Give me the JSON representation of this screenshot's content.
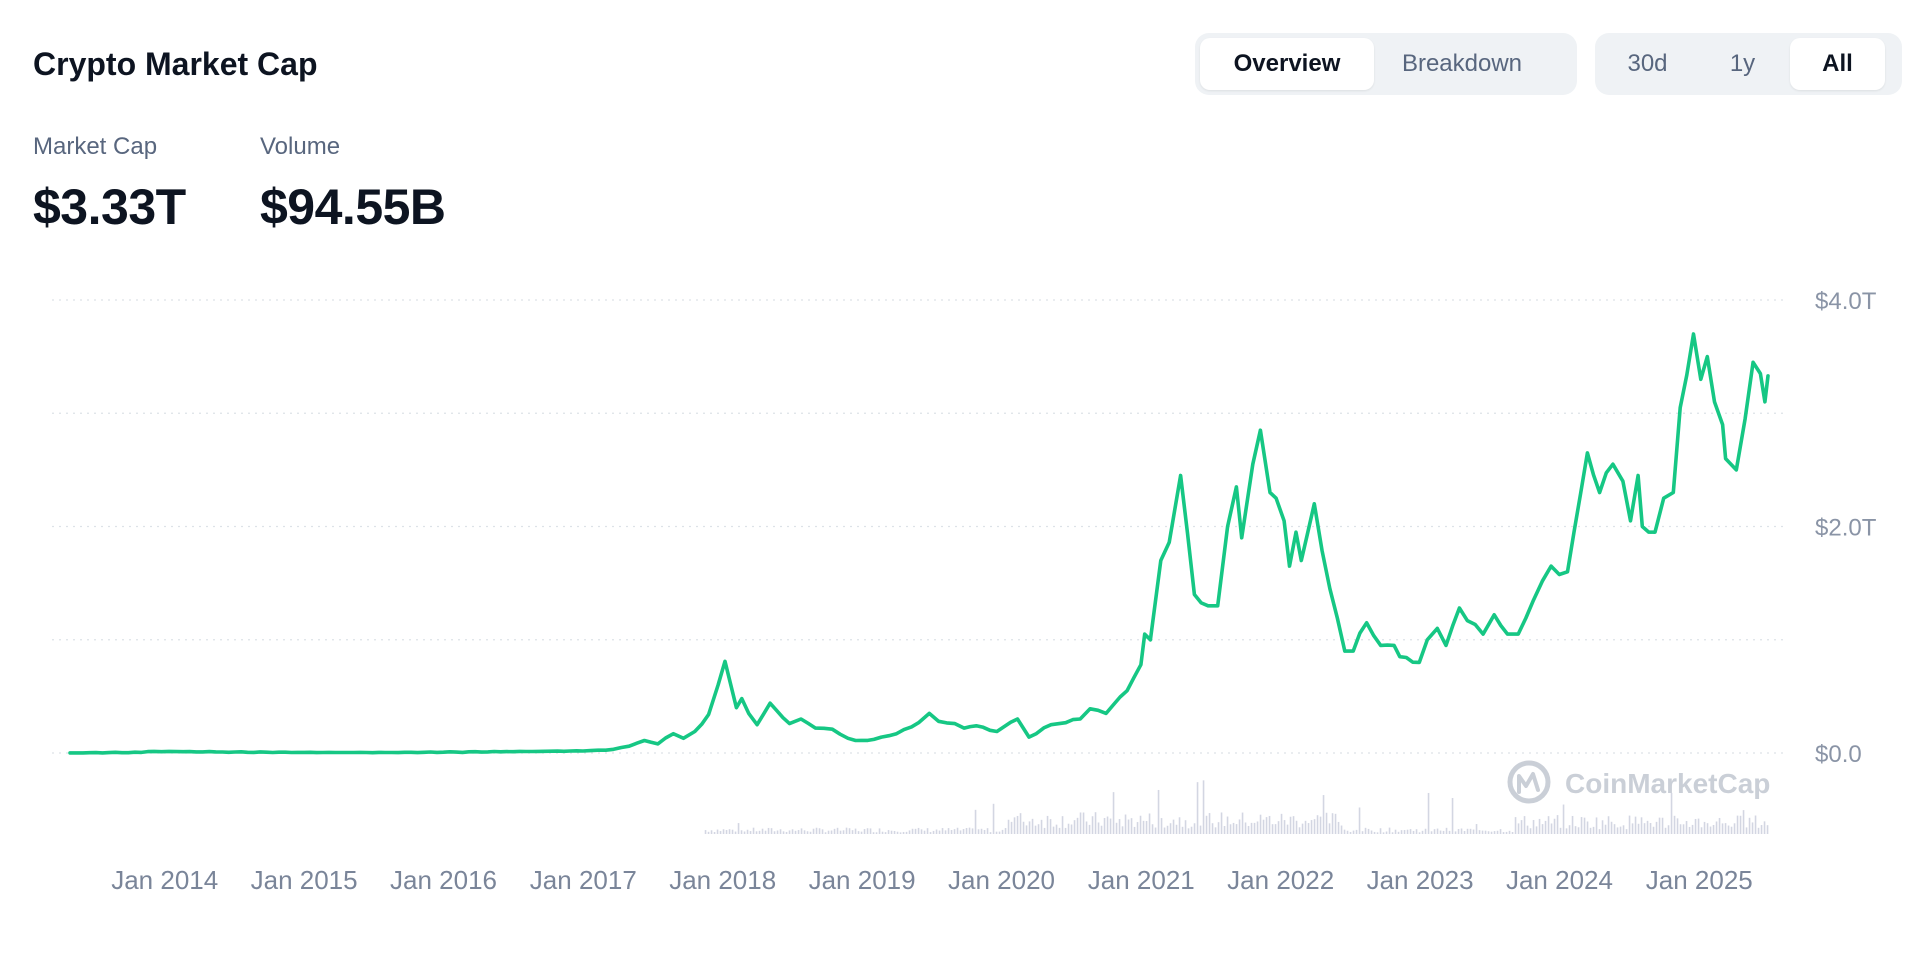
{
  "header": {
    "title": "Crypto Market Cap",
    "view_tabs": [
      {
        "label": "Overview",
        "active": true
      },
      {
        "label": "Breakdown",
        "active": false
      }
    ],
    "range_tabs": [
      {
        "label": "30d",
        "active": false
      },
      {
        "label": "1y",
        "active": false
      },
      {
        "label": "All",
        "active": true
      }
    ]
  },
  "stats": {
    "market_cap_label": "Market Cap",
    "market_cap_value": "$3.33T",
    "volume_label": "Volume",
    "volume_value": "$94.55B"
  },
  "watermark": {
    "text": "CoinMarketCap",
    "icon": "coinmarketcap-logo-icon"
  },
  "colors": {
    "line": "#16c784",
    "grid": "#dde2e8",
    "volume_bars": "#c8ccdb",
    "axis_text": "#7a8599"
  },
  "chart_data": {
    "type": "line",
    "title": "",
    "xlabel": "",
    "ylabel": "",
    "y_unit": "USD trillions",
    "ylim": [
      0,
      4
    ],
    "y_ticks": [
      {
        "value": 0,
        "label": "$0.0"
      },
      {
        "value": 2,
        "label": "$2.0T"
      },
      {
        "value": 4,
        "label": "$4.0T"
      }
    ],
    "x_range": [
      "2013-04-28",
      "2025-06-30"
    ],
    "x_ticks": [
      {
        "date": "2014-01-01",
        "label": "Jan 2014"
      },
      {
        "date": "2015-01-01",
        "label": "Jan 2015"
      },
      {
        "date": "2016-01-01",
        "label": "Jan 2016"
      },
      {
        "date": "2017-01-01",
        "label": "Jan 2017"
      },
      {
        "date": "2018-01-01",
        "label": "Jan 2018"
      },
      {
        "date": "2019-01-01",
        "label": "Jan 2019"
      },
      {
        "date": "2020-01-01",
        "label": "Jan 2020"
      },
      {
        "date": "2021-01-01",
        "label": "Jan 2021"
      },
      {
        "date": "2022-01-01",
        "label": "Jan 2022"
      },
      {
        "date": "2023-01-01",
        "label": "Jan 2023"
      },
      {
        "date": "2024-01-01",
        "label": "Jan 2024"
      },
      {
        "date": "2025-01-01",
        "label": "Jan 2025"
      }
    ],
    "grid": true,
    "series": [
      {
        "points": [
          [
            "2013-04-28",
            0.001
          ],
          [
            "2013-11-01",
            0.005
          ],
          [
            "2013-12-04",
            0.014
          ],
          [
            "2014-02-01",
            0.012
          ],
          [
            "2014-06-01",
            0.009
          ],
          [
            "2015-01-01",
            0.005
          ],
          [
            "2015-08-01",
            0.004
          ],
          [
            "2016-01-01",
            0.007
          ],
          [
            "2016-06-15",
            0.012
          ],
          [
            "2016-12-31",
            0.018
          ],
          [
            "2017-03-01",
            0.025
          ],
          [
            "2017-05-01",
            0.06
          ],
          [
            "2017-06-10",
            0.11
          ],
          [
            "2017-07-15",
            0.08
          ],
          [
            "2017-08-25",
            0.17
          ],
          [
            "2017-09-20",
            0.13
          ],
          [
            "2017-10-20",
            0.19
          ],
          [
            "2017-11-25",
            0.34
          ],
          [
            "2017-12-20",
            0.6
          ],
          [
            "2018-01-07",
            0.81
          ],
          [
            "2018-02-06",
            0.4
          ],
          [
            "2018-02-20",
            0.48
          ],
          [
            "2018-03-10",
            0.35
          ],
          [
            "2018-04-01",
            0.25
          ],
          [
            "2018-05-05",
            0.44
          ],
          [
            "2018-06-25",
            0.26
          ],
          [
            "2018-07-25",
            0.3
          ],
          [
            "2018-09-01",
            0.22
          ],
          [
            "2018-10-15",
            0.21
          ],
          [
            "2018-11-25",
            0.13
          ],
          [
            "2018-12-15",
            0.11
          ],
          [
            "2019-02-01",
            0.12
          ],
          [
            "2019-04-01",
            0.17
          ],
          [
            "2019-05-30",
            0.27
          ],
          [
            "2019-06-26",
            0.35
          ],
          [
            "2019-07-20",
            0.28
          ],
          [
            "2019-09-01",
            0.26
          ],
          [
            "2019-09-25",
            0.22
          ],
          [
            "2019-10-27",
            0.24
          ],
          [
            "2019-12-20",
            0.19
          ],
          [
            "2020-02-12",
            0.3
          ],
          [
            "2020-03-13",
            0.14
          ],
          [
            "2020-05-10",
            0.25
          ],
          [
            "2020-07-25",
            0.3
          ],
          [
            "2020-08-20",
            0.39
          ],
          [
            "2020-10-01",
            0.35
          ],
          [
            "2020-11-25",
            0.55
          ],
          [
            "2020-12-31",
            0.78
          ],
          [
            "2021-01-10",
            1.05
          ],
          [
            "2021-01-25",
            1.0
          ],
          [
            "2021-02-21",
            1.7
          ],
          [
            "2021-03-15",
            1.86
          ],
          [
            "2021-04-14",
            2.45
          ],
          [
            "2021-05-20",
            1.4
          ],
          [
            "2021-06-25",
            1.3
          ],
          [
            "2021-07-20",
            1.3
          ],
          [
            "2021-08-15",
            2.0
          ],
          [
            "2021-09-07",
            2.35
          ],
          [
            "2021-09-21",
            1.9
          ],
          [
            "2021-10-20",
            2.55
          ],
          [
            "2021-11-09",
            2.85
          ],
          [
            "2021-12-04",
            2.3
          ],
          [
            "2021-12-20",
            2.25
          ],
          [
            "2022-01-10",
            2.05
          ],
          [
            "2022-01-24",
            1.65
          ],
          [
            "2022-02-10",
            1.95
          ],
          [
            "2022-02-24",
            1.7
          ],
          [
            "2022-03-30",
            2.2
          ],
          [
            "2022-05-10",
            1.45
          ],
          [
            "2022-06-18",
            0.9
          ],
          [
            "2022-07-10",
            0.9
          ],
          [
            "2022-08-14",
            1.15
          ],
          [
            "2022-09-20",
            0.95
          ],
          [
            "2022-10-25",
            0.95
          ],
          [
            "2022-11-09",
            0.85
          ],
          [
            "2022-12-30",
            0.8
          ],
          [
            "2023-01-20",
            1.0
          ],
          [
            "2023-02-15",
            1.1
          ],
          [
            "2023-03-10",
            0.95
          ],
          [
            "2023-04-14",
            1.28
          ],
          [
            "2023-06-15",
            1.05
          ],
          [
            "2023-07-14",
            1.22
          ],
          [
            "2023-08-18",
            1.05
          ],
          [
            "2023-09-15",
            1.05
          ],
          [
            "2023-10-25",
            1.35
          ],
          [
            "2023-12-10",
            1.65
          ],
          [
            "2024-01-22",
            1.6
          ],
          [
            "2024-03-14",
            2.65
          ],
          [
            "2024-04-15",
            2.3
          ],
          [
            "2024-05-20",
            2.55
          ],
          [
            "2024-06-15",
            2.4
          ],
          [
            "2024-07-05",
            2.05
          ],
          [
            "2024-07-25",
            2.45
          ],
          [
            "2024-08-05",
            2.0
          ],
          [
            "2024-09-07",
            1.95
          ],
          [
            "2024-09-30",
            2.25
          ],
          [
            "2024-10-25",
            2.3
          ],
          [
            "2024-11-12",
            3.05
          ],
          [
            "2024-12-17",
            3.7
          ],
          [
            "2025-01-05",
            3.3
          ],
          [
            "2025-01-22",
            3.5
          ],
          [
            "2025-02-10",
            3.1
          ],
          [
            "2025-03-03",
            2.9
          ],
          [
            "2025-03-11",
            2.6
          ],
          [
            "2025-04-08",
            2.5
          ],
          [
            "2025-05-01",
            2.95
          ],
          [
            "2025-05-22",
            3.45
          ],
          [
            "2025-06-10",
            3.35
          ],
          [
            "2025-06-22",
            3.1
          ],
          [
            "2025-06-30",
            3.33
          ]
        ]
      }
    ]
  }
}
